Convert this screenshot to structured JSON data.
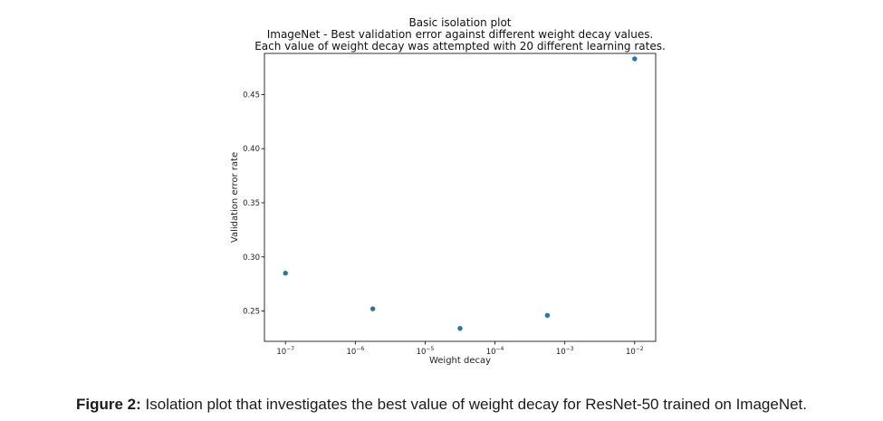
{
  "chart_data": {
    "type": "scatter",
    "title": [
      "Basic isolation plot",
      "ImageNet - Best validation error against different weight decay values.",
      "Each value of weight decay was attempted with 20 different learning rates."
    ],
    "xlabel": "Weight decay",
    "ylabel": "Validation error rate",
    "x_scale": "log",
    "xlim": [
      5e-08,
      0.02
    ],
    "ylim": [
      0.222,
      0.488
    ],
    "x_ticks": [
      {
        "value": 1e-07,
        "base": "10",
        "exp": "−7"
      },
      {
        "value": 1e-06,
        "base": "10",
        "exp": "−6"
      },
      {
        "value": 1e-05,
        "base": "10",
        "exp": "−5"
      },
      {
        "value": 0.0001,
        "base": "10",
        "exp": "−4"
      },
      {
        "value": 0.001,
        "base": "10",
        "exp": "−3"
      },
      {
        "value": 0.01,
        "base": "10",
        "exp": "−2"
      }
    ],
    "y_ticks": [
      {
        "value": 0.25,
        "label": "0.25"
      },
      {
        "value": 0.3,
        "label": "0.30"
      },
      {
        "value": 0.35,
        "label": "0.35"
      },
      {
        "value": 0.4,
        "label": "0.40"
      },
      {
        "value": 0.45,
        "label": "0.45"
      }
    ],
    "grid": false,
    "marker_color": "#1f77b4",
    "points": [
      {
        "x": 1e-07,
        "y": 0.285
      },
      {
        "x": 1.78e-06,
        "y": 0.252
      },
      {
        "x": 3.16e-05,
        "y": 0.234
      },
      {
        "x": 0.000562,
        "y": 0.246
      },
      {
        "x": 0.01,
        "y": 0.483
      }
    ]
  },
  "caption": {
    "label": "Figure 2:",
    "text": " Isolation plot that investigates the best value of weight decay for ResNet-50 trained on ImageNet."
  }
}
